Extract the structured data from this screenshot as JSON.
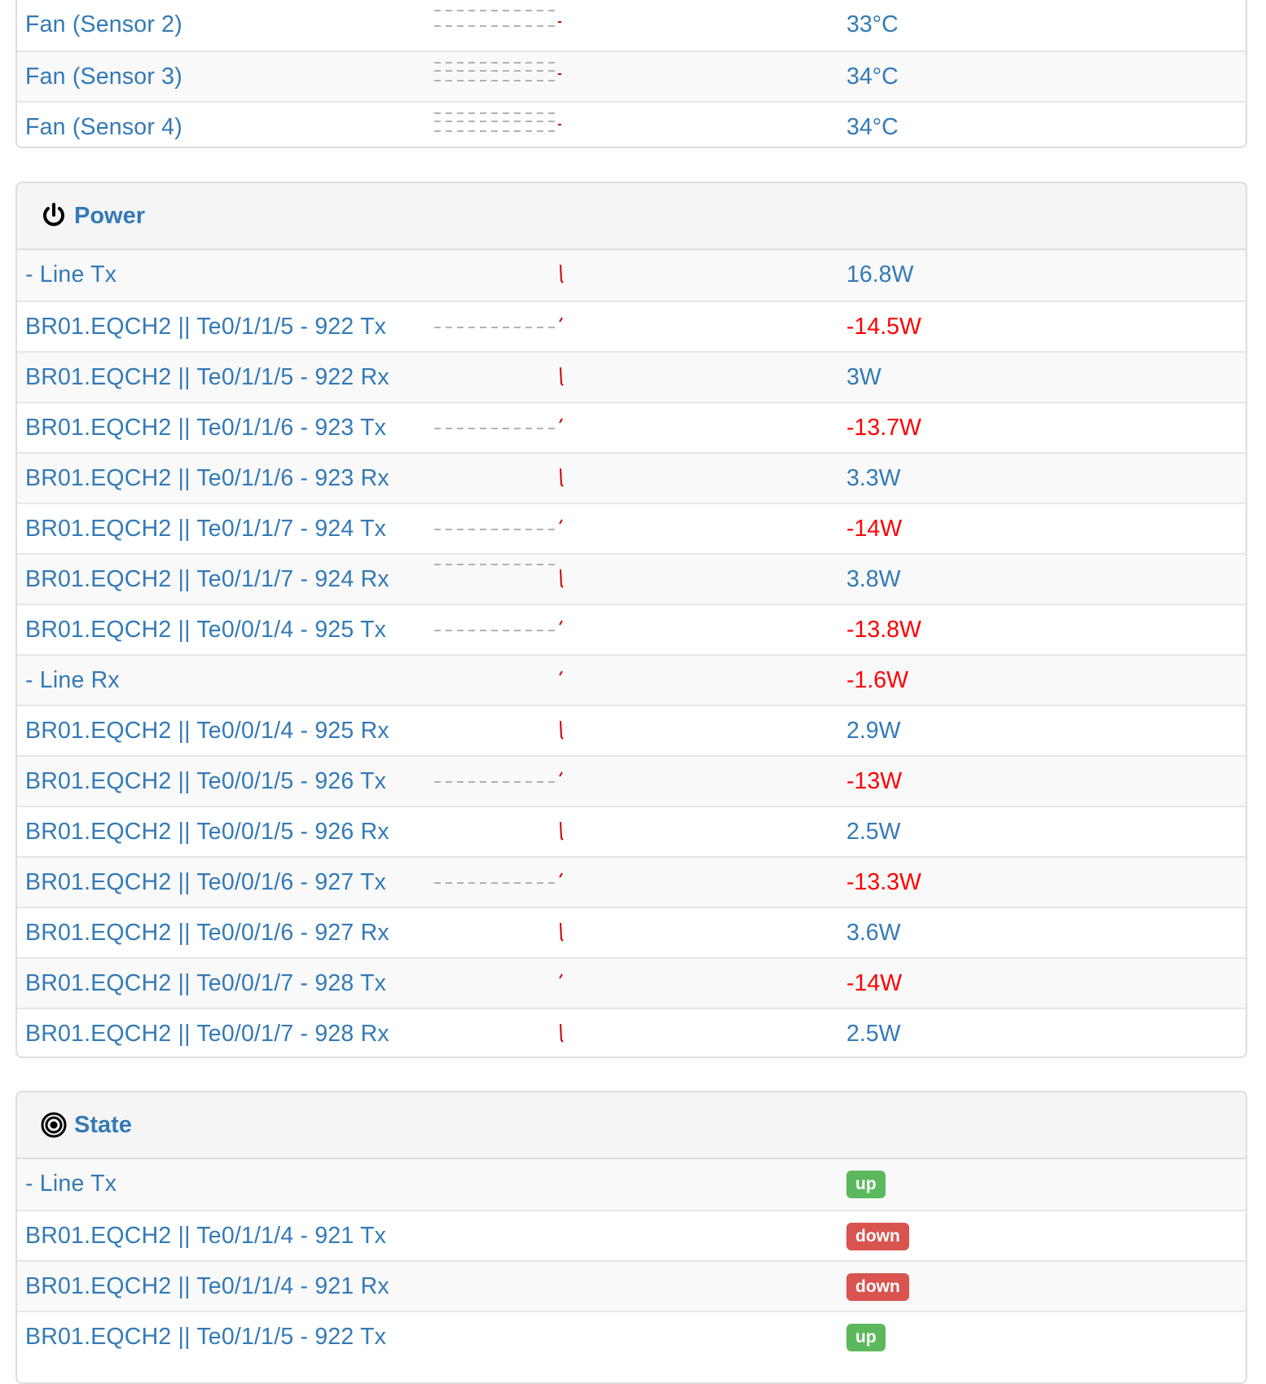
{
  "temperature": {
    "rows": [
      {
        "label": "Fan (Sensor 2)",
        "value": "33°C"
      },
      {
        "label": "Fan (Sensor 3)",
        "value": "34°C"
      },
      {
        "label": "Fan (Sensor 4)",
        "value": "34°C"
      }
    ]
  },
  "power": {
    "title": "Power",
    "icon": "power-icon",
    "rows": [
      {
        "label": "- Line Tx",
        "value": "16.8W"
      },
      {
        "label": "BR01.EQCH2 || Te0/1/1/5 - 922 Tx",
        "value": "-14.5W"
      },
      {
        "label": "BR01.EQCH2 || Te0/1/1/5 - 922 Rx",
        "value": "3W"
      },
      {
        "label": "BR01.EQCH2 || Te0/1/1/6 - 923 Tx",
        "value": "-13.7W"
      },
      {
        "label": "BR01.EQCH2 || Te0/1/1/6 - 923 Rx",
        "value": "3.3W"
      },
      {
        "label": "BR01.EQCH2 || Te0/1/1/7 - 924 Tx",
        "value": "-14W"
      },
      {
        "label": "BR01.EQCH2 || Te0/1/1/7 - 924 Rx",
        "value": "3.8W"
      },
      {
        "label": "BR01.EQCH2 || Te0/0/1/4 - 925 Tx",
        "value": "-13.8W"
      },
      {
        "label": "- Line Rx",
        "value": "-1.6W"
      },
      {
        "label": "BR01.EQCH2 || Te0/0/1/4 - 925 Rx",
        "value": "2.9W"
      },
      {
        "label": "BR01.EQCH2 || Te0/0/1/5 - 926 Tx",
        "value": "-13W"
      },
      {
        "label": "BR01.EQCH2 || Te0/0/1/5 - 926 Rx",
        "value": "2.5W"
      },
      {
        "label": "BR01.EQCH2 || Te0/0/1/6 - 927 Tx",
        "value": "-13.3W"
      },
      {
        "label": "BR01.EQCH2 || Te0/0/1/6 - 927 Rx",
        "value": "3.6W"
      },
      {
        "label": "BR01.EQCH2 || Te0/0/1/7 - 928 Tx",
        "value": "-14W"
      },
      {
        "label": "BR01.EQCH2 || Te0/0/1/7 - 928 Rx",
        "value": "2.5W"
      }
    ]
  },
  "state": {
    "title": "State",
    "icon": "target-icon",
    "rows": [
      {
        "label": "- Line Tx",
        "status": "up"
      },
      {
        "label": "BR01.EQCH2 || Te0/1/1/4 - 921 Tx",
        "status": "down"
      },
      {
        "label": "BR01.EQCH2 || Te0/1/1/4 - 921 Rx",
        "status": "down"
      },
      {
        "label": "BR01.EQCH2 || Te0/1/1/5 - 922 Tx",
        "status": "up"
      }
    ]
  },
  "colors": {
    "link": "#337ab7",
    "negative": "#ff0000",
    "up": "#5cb85c",
    "down": "#d9534f",
    "spark_line": "#cc0000",
    "spark_ref": "#999999"
  }
}
